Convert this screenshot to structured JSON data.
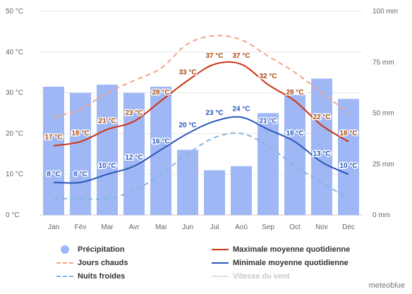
{
  "chart_data": {
    "type": "bar",
    "categories": [
      "Jan",
      "Fév",
      "Mar",
      "Avr",
      "Mai",
      "Jun",
      "Jul",
      "Aoû",
      "Sep",
      "Oct",
      "Nov",
      "Déc"
    ],
    "y_left": {
      "min": 0,
      "max": 50,
      "ticks": [
        0,
        10,
        20,
        30,
        40,
        50
      ],
      "tick_labels": [
        "0 °C",
        "10 °C",
        "20 °C",
        "30 °C",
        "40 °C",
        "50 °C"
      ]
    },
    "y_right": {
      "min": 0,
      "max": 100,
      "ticks": [
        0,
        25,
        50,
        75,
        100
      ],
      "tick_labels": [
        "0 mm",
        "25 mm",
        "50 mm",
        "75 mm",
        "100 mm"
      ]
    },
    "grid": true,
    "legend_position": "bottom",
    "series": [
      {
        "name": "Précipitation",
        "kind": "bar",
        "axis": "right",
        "color": "#9fb8f5",
        "values": [
          63,
          60,
          64,
          60,
          63,
          32,
          22,
          24,
          50,
          59,
          67,
          57
        ]
      },
      {
        "name": "Maximale moyenne quotidienne",
        "kind": "line",
        "axis": "left",
        "color": "#cc3311",
        "label_color": "#a84a10",
        "values": [
          17,
          18,
          21,
          23,
          28,
          33,
          37,
          37,
          32,
          28,
          22,
          18
        ],
        "labels": [
          "17 °C",
          "18 °C",
          "21 °C",
          "23 °C",
          "28 °C",
          "33 °C",
          "37 °C",
          "37 °C",
          "32 °C",
          "28 °C",
          "22 °C",
          "18 °C"
        ]
      },
      {
        "name": "Minimale moyenne quotidienne",
        "kind": "line",
        "axis": "left",
        "color": "#2a56b8",
        "label_color": "#2a56b8",
        "values": [
          8,
          8,
          10,
          12,
          16,
          20,
          23,
          24,
          21,
          18,
          13,
          10
        ],
        "labels": [
          "8 °C",
          "8 °C",
          "10 °C",
          "12 °C",
          "16 °C",
          "20 °C",
          "23 °C",
          "24 °C",
          "21 °C",
          "18 °C",
          "13 °C",
          "10 °C"
        ]
      },
      {
        "name": "Jours chauds",
        "kind": "dashed-line",
        "axis": "left",
        "color": "#f4a48a",
        "values": [
          24,
          26,
          30,
          33,
          36,
          42,
          44,
          43,
          39,
          35,
          30,
          25
        ]
      },
      {
        "name": "Nuits froides",
        "kind": "dashed-line",
        "axis": "left",
        "color": "#86b4e0",
        "values": [
          4,
          4,
          4,
          6,
          10,
          15,
          19,
          20,
          17,
          12,
          8,
          4
        ]
      }
    ]
  },
  "legend": {
    "items": [
      {
        "label": "Précipitation",
        "symbol": "dot",
        "color": "#9fb8f5",
        "muted": false
      },
      {
        "label": "Maximale moyenne quotidienne",
        "symbol": "line",
        "color": "#cc3311",
        "muted": false
      },
      {
        "label": "Jours chauds",
        "symbol": "dash",
        "color": "#f4a48a",
        "muted": false
      },
      {
        "label": "Minimale moyenne quotidienne",
        "symbol": "line",
        "color": "#2a56b8",
        "muted": false
      },
      {
        "label": "Nuits froides",
        "symbol": "dash",
        "color": "#86b4e0",
        "muted": false
      },
      {
        "label": "Vitesse du vent",
        "symbol": "line",
        "color": "#e2e2e2",
        "muted": true
      }
    ]
  },
  "credit": "meteoblue"
}
